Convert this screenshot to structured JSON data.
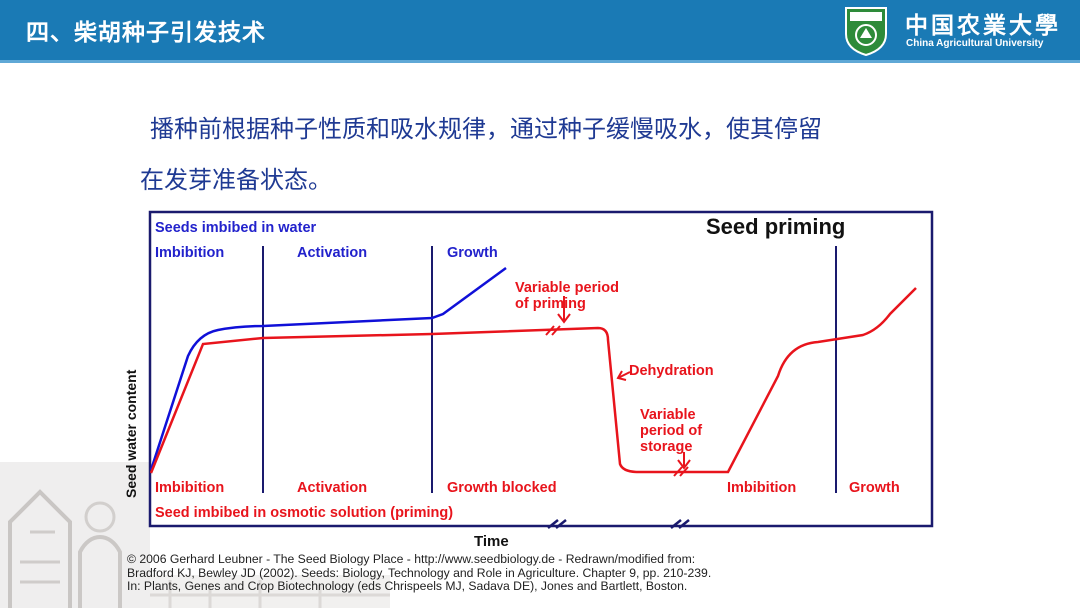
{
  "header": {
    "title": "四、柴胡种子引发技术",
    "logo_cn": "中国农業大學",
    "logo_en": "China Agricultural University"
  },
  "intro": {
    "line1": "播种前根据种子性质和吸水规律，通过种子缓慢吸水，使其停留",
    "line2": "在发芽准备状态。"
  },
  "figure": {
    "title": "Seed priming",
    "top_legend": "Seeds imbibed in water",
    "top_phases": [
      "Imbibition",
      "Activation",
      "Growth"
    ],
    "bottom_phases": [
      "Imbibition",
      "Activation",
      "Growth blocked",
      "Imbibition",
      "Growth"
    ],
    "bottom_legend": "Seed imbibed in osmotic solution (priming)",
    "annotations": {
      "variable_priming_1": "Variable period",
      "variable_priming_2": "of priming",
      "dehydration": "Dehydration",
      "variable_storage_1": "Variable",
      "variable_storage_2": "period of",
      "variable_storage_3": "storage"
    },
    "ylabel": "Seed water content",
    "xlabel": "Time",
    "colors": {
      "water": "#1010d8",
      "priming": "#e8141c",
      "frame": "#1a1a6e",
      "label_blue": "#2222cc"
    }
  },
  "credit": {
    "line1": "© 2006 Gerhard Leubner - The Seed Biology Place - http://www.seedbiology.de - Redrawn/modified from:",
    "line2": "Bradford KJ, Bewley JD (2002). Seeds: Biology, Technology and Role in Agriculture. Chapter 9, pp. 210-239.",
    "line3": "In: Plants, Genes and Crop Biotechnology (eds Chrispeels MJ, Sadava DE), Jones and Bartlett, Boston."
  }
}
